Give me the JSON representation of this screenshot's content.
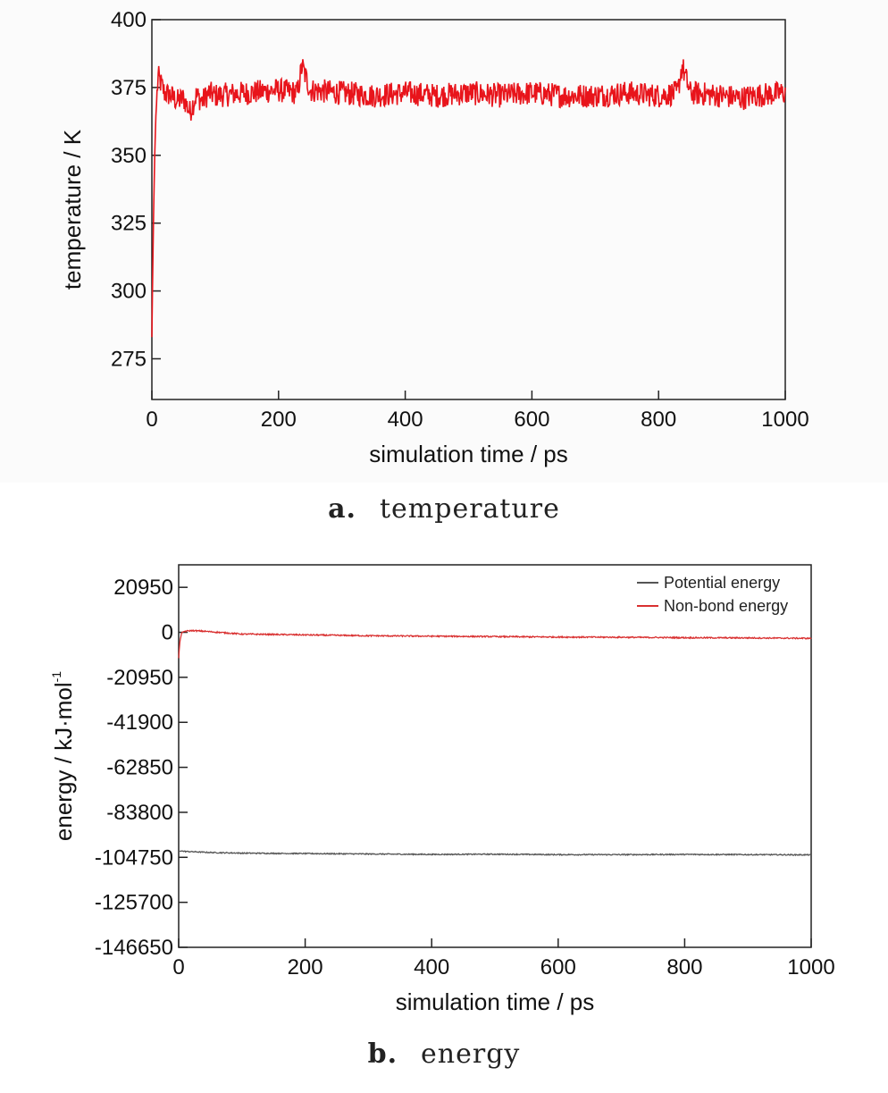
{
  "captions": {
    "a": {
      "letter": "a.",
      "text": "temperature"
    },
    "b": {
      "letter": "b.",
      "text": "energy"
    }
  },
  "chart_data": [
    {
      "type": "line",
      "xlabel": "simulation time / ps",
      "ylabel": "temperature / K",
      "xlim": [
        0,
        1000
      ],
      "ylim": [
        260,
        400
      ],
      "xticks": [
        0,
        200,
        400,
        600,
        800,
        1000
      ],
      "yticks": [
        275,
        300,
        325,
        350,
        375,
        400
      ],
      "grid": false,
      "series": [
        {
          "color": "#e8141b",
          "x": [
            0,
            2,
            4,
            6,
            8,
            10,
            15,
            20,
            30,
            40,
            50,
            60,
            70,
            80,
            90,
            100,
            150,
            200,
            230,
            237,
            250,
            300,
            350,
            400,
            450,
            500,
            550,
            600,
            650,
            700,
            750,
            800,
            830,
            837,
            850,
            900,
            930,
            950,
            1000
          ],
          "y": [
            283,
            318,
            345,
            363,
            372,
            379,
            376,
            373,
            372,
            370,
            371,
            366,
            372,
            370,
            373,
            372,
            373,
            374,
            373,
            383,
            374,
            373,
            372,
            373,
            372,
            373,
            372,
            373,
            372,
            372,
            373,
            372,
            373,
            383,
            373,
            372,
            371,
            372,
            373
          ],
          "noise": 4.5
        }
      ]
    },
    {
      "type": "line",
      "xlabel": "simulation time / ps",
      "ylabel": "energy / kJ·mol",
      "ylabel_sup": "-1",
      "xlim": [
        0,
        1000
      ],
      "ylim": [
        -146650,
        31425
      ],
      "xticks": [
        0,
        200,
        400,
        600,
        800,
        1000
      ],
      "yticks": [
        20950,
        0,
        -20950,
        -41900,
        -62850,
        -83800,
        -104750,
        -125700,
        -146650
      ],
      "grid": false,
      "legend": {
        "placement": "top-right"
      },
      "series": [
        {
          "name": "Potential energy",
          "color": "#555555",
          "x": [
            0,
            5,
            10,
            50,
            100,
            200,
            300,
            400,
            500,
            600,
            700,
            800,
            900,
            1000
          ],
          "y": [
            -102000,
            -101800,
            -102000,
            -102500,
            -102800,
            -103000,
            -103200,
            -103400,
            -103300,
            -103500,
            -103500,
            -103400,
            -103500,
            -103600
          ],
          "noise": 250
        },
        {
          "name": "Non-bond energy",
          "color": "#d93030",
          "x": [
            0,
            2,
            5,
            10,
            20,
            40,
            100,
            200,
            300,
            400,
            500,
            600,
            700,
            800,
            900,
            1000
          ],
          "y": [
            -12000,
            -4000,
            0,
            500,
            800,
            500,
            -800,
            -1200,
            -1600,
            -1800,
            -2000,
            -2200,
            -2300,
            -2500,
            -2600,
            -2800
          ],
          "noise": 300
        }
      ]
    }
  ]
}
